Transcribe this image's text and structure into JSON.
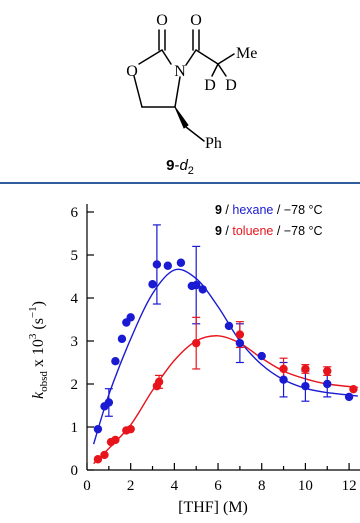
{
  "structure": {
    "atoms": {
      "carbonyl_o_ring": "O",
      "carbonyl_o_acyl": "O",
      "ring_o": "O",
      "ring_n": "N",
      "methyl": "Me",
      "deuterium_1": "D",
      "deuterium_2": "D",
      "phenyl": "Ph"
    },
    "compound_label": {
      "number": "9",
      "suffix_prefix": "-",
      "suffix_italic": "d",
      "suffix_sub": "2"
    }
  },
  "chart_data": {
    "type": "scatter",
    "xlabel": "[THF] (M)",
    "ylabel": {
      "main": "k",
      "sub": "obsd",
      "mid": " x 10",
      "sup": "3",
      "unit_pre": " (s",
      "unit_sup": "−1",
      "unit_post": ")"
    },
    "xlim": [
      0,
      12.5
    ],
    "ylim": [
      0,
      6
    ],
    "xticks": [
      0,
      2,
      4,
      6,
      8,
      10,
      12
    ],
    "yticks": [
      0,
      1,
      2,
      3,
      4,
      5,
      6
    ],
    "grid": false,
    "legend_placement": "top-right",
    "series": [
      {
        "name_compound": "9",
        "name_sep1": " / ",
        "name_solvent": "hexane",
        "name_sep2": " / ",
        "name_temp": "−78 °C",
        "color": "#1a1ad2",
        "points": [
          {
            "x": 0.5,
            "y": 0.95
          },
          {
            "x": 0.8,
            "y": 1.48
          },
          {
            "x": 1.0,
            "y": 1.57,
            "err": 0.32
          },
          {
            "x": 1.3,
            "y": 2.53
          },
          {
            "x": 1.6,
            "y": 3.05
          },
          {
            "x": 1.8,
            "y": 3.43
          },
          {
            "x": 2.0,
            "y": 3.55
          },
          {
            "x": 3.0,
            "y": 4.32
          },
          {
            "x": 3.2,
            "y": 4.78,
            "err": 0.92
          },
          {
            "x": 3.7,
            "y": 4.75
          },
          {
            "x": 4.3,
            "y": 4.82
          },
          {
            "x": 4.8,
            "y": 4.28
          },
          {
            "x": 5.0,
            "y": 4.3,
            "err": 0.9
          },
          {
            "x": 5.3,
            "y": 4.2
          },
          {
            "x": 6.5,
            "y": 3.35
          },
          {
            "x": 7.0,
            "y": 2.95,
            "err": 0.45
          },
          {
            "x": 8.0,
            "y": 2.65
          },
          {
            "x": 9.0,
            "y": 2.1,
            "err": 0.4
          },
          {
            "x": 10.0,
            "y": 1.95,
            "err": 0.35
          },
          {
            "x": 11.0,
            "y": 2.0,
            "err": 0.3
          },
          {
            "x": 12.0,
            "y": 1.7
          }
        ],
        "fit": [
          [
            0.3,
            0.6
          ],
          [
            1,
            1.75
          ],
          [
            2,
            3.05
          ],
          [
            3,
            4.1
          ],
          [
            4,
            4.65
          ],
          [
            5,
            4.45
          ],
          [
            6,
            3.8
          ],
          [
            7,
            3.0
          ],
          [
            8,
            2.45
          ],
          [
            9,
            2.1
          ],
          [
            10,
            1.9
          ],
          [
            11,
            1.8
          ],
          [
            12.4,
            1.72
          ]
        ]
      },
      {
        "name_compound": "9",
        "name_sep1": " / ",
        "name_solvent": "toluene",
        "name_sep2": " / ",
        "name_temp": "−78 °C",
        "color": "#e8141c",
        "points": [
          {
            "x": 0.5,
            "y": 0.25
          },
          {
            "x": 0.8,
            "y": 0.35
          },
          {
            "x": 1.1,
            "y": 0.65
          },
          {
            "x": 1.3,
            "y": 0.7
          },
          {
            "x": 1.8,
            "y": 0.92
          },
          {
            "x": 2.0,
            "y": 0.95
          },
          {
            "x": 3.2,
            "y": 1.95
          },
          {
            "x": 3.3,
            "y": 2.05,
            "err": 0.15
          },
          {
            "x": 5.0,
            "y": 2.95,
            "err": 0.6
          },
          {
            "x": 7.0,
            "y": 3.15,
            "err": 0.3
          },
          {
            "x": 9.0,
            "y": 2.35,
            "err": 0.25
          },
          {
            "x": 10.0,
            "y": 2.35,
            "err": 0.1
          },
          {
            "x": 11.0,
            "y": 2.3,
            "err": 0.1
          },
          {
            "x": 12.2,
            "y": 1.88
          }
        ],
        "fit": [
          [
            0.3,
            0.15
          ],
          [
            1,
            0.5
          ],
          [
            2,
            1.05
          ],
          [
            3,
            1.85
          ],
          [
            4,
            2.55
          ],
          [
            5,
            3.0
          ],
          [
            6,
            3.12
          ],
          [
            7,
            2.95
          ],
          [
            8,
            2.6
          ],
          [
            9,
            2.3
          ],
          [
            10,
            2.12
          ],
          [
            11,
            2.0
          ],
          [
            12.4,
            1.92
          ]
        ]
      }
    ]
  }
}
